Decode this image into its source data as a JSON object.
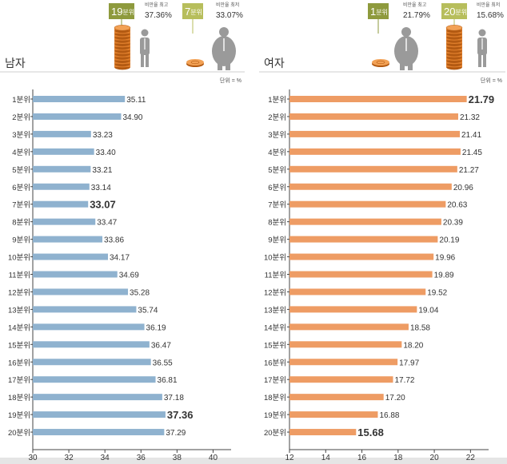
{
  "chart_data": [
    {
      "type": "bar",
      "orientation": "horizontal",
      "title": "남자",
      "unit": "단위 = %",
      "categories": [
        "1분위",
        "2분위",
        "3분위",
        "4분위",
        "5분위",
        "6분위",
        "7분위",
        "8분위",
        "9분위",
        "10분위",
        "11분위",
        "12분위",
        "13분위",
        "14분위",
        "15분위",
        "16분위",
        "17분위",
        "18분위",
        "19분위",
        "20분위"
      ],
      "values": [
        35.11,
        34.9,
        33.23,
        33.4,
        33.21,
        33.14,
        33.07,
        33.47,
        33.86,
        34.17,
        34.69,
        35.28,
        35.74,
        36.19,
        36.47,
        36.55,
        36.81,
        37.18,
        37.36,
        37.29
      ],
      "xlim": [
        30,
        41
      ],
      "xticks": [
        30,
        32,
        34,
        36,
        38,
        40
      ],
      "highlight": [
        "7분위",
        "19분위"
      ],
      "bar_color": "#8fb2cf",
      "callouts": [
        {
          "badge_num": "19",
          "badge_unit": "분위",
          "label": "비만율 최고",
          "value": "37.36%",
          "badge_color": "#8e9a3d"
        },
        {
          "badge_num": "7",
          "badge_unit": "분위",
          "label": "비만율 최저",
          "value": "33.07%",
          "badge_color": "#b7be5c"
        }
      ]
    },
    {
      "type": "bar",
      "orientation": "horizontal",
      "title": "여자",
      "unit": "단위 = %",
      "categories": [
        "1분위",
        "2분위",
        "3분위",
        "4분위",
        "5분위",
        "6분위",
        "7분위",
        "8분위",
        "9분위",
        "10분위",
        "11분위",
        "12분위",
        "13분위",
        "14분위",
        "15분위",
        "16분위",
        "17분위",
        "18분위",
        "19분위",
        "20분위"
      ],
      "values": [
        21.79,
        21.32,
        21.41,
        21.45,
        21.27,
        20.96,
        20.63,
        20.39,
        20.19,
        19.96,
        19.89,
        19.52,
        19.04,
        18.58,
        18.2,
        17.97,
        17.72,
        17.2,
        16.88,
        15.68
      ],
      "xlim": [
        12,
        23
      ],
      "xticks": [
        12,
        14,
        16,
        18,
        20,
        22
      ],
      "highlight": [
        "1분위",
        "20분위"
      ],
      "bar_color": "#ee9c64",
      "callouts": [
        {
          "badge_num": "1",
          "badge_unit": "분위",
          "label": "비만율 최고",
          "value": "21.79%",
          "badge_color": "#8e9a3d"
        },
        {
          "badge_num": "20",
          "badge_unit": "분위",
          "label": "비만율 최저",
          "value": "15.68%",
          "badge_color": "#b7be5c"
        }
      ]
    }
  ],
  "colors": {
    "coin": "#e07f2c",
    "coin_dark": "#b35a12",
    "person": "#9a9a9a",
    "axis": "#444",
    "footer": "#e5e5e5"
  }
}
